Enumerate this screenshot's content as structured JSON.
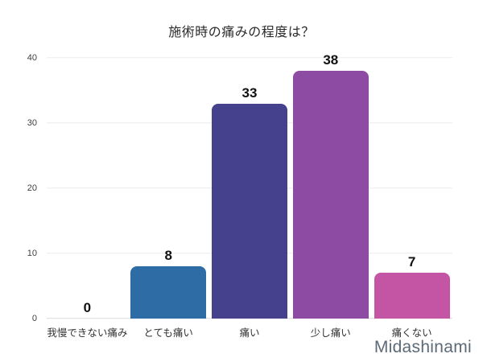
{
  "chart_data": {
    "type": "bar",
    "title": "施術時の痛みの程度は？",
    "categories": [
      "我慢できない痛み",
      "とても痛い",
      "痛い",
      "少し痛い",
      "痛くない"
    ],
    "values": [
      0,
      8,
      33,
      38,
      7
    ],
    "bar_colors": [
      null,
      "#2e6ca6",
      "#45418c",
      "#8d4ba3",
      "#c455a5"
    ],
    "xlabel": "",
    "ylabel": "",
    "ylim": [
      0,
      40
    ],
    "yticks": [
      0,
      10,
      20,
      30,
      40
    ],
    "grid": true,
    "legend_position": "none",
    "value_labels_shown": true
  },
  "watermark": {
    "text": "Midashinami",
    "color": "#5b6a76"
  }
}
